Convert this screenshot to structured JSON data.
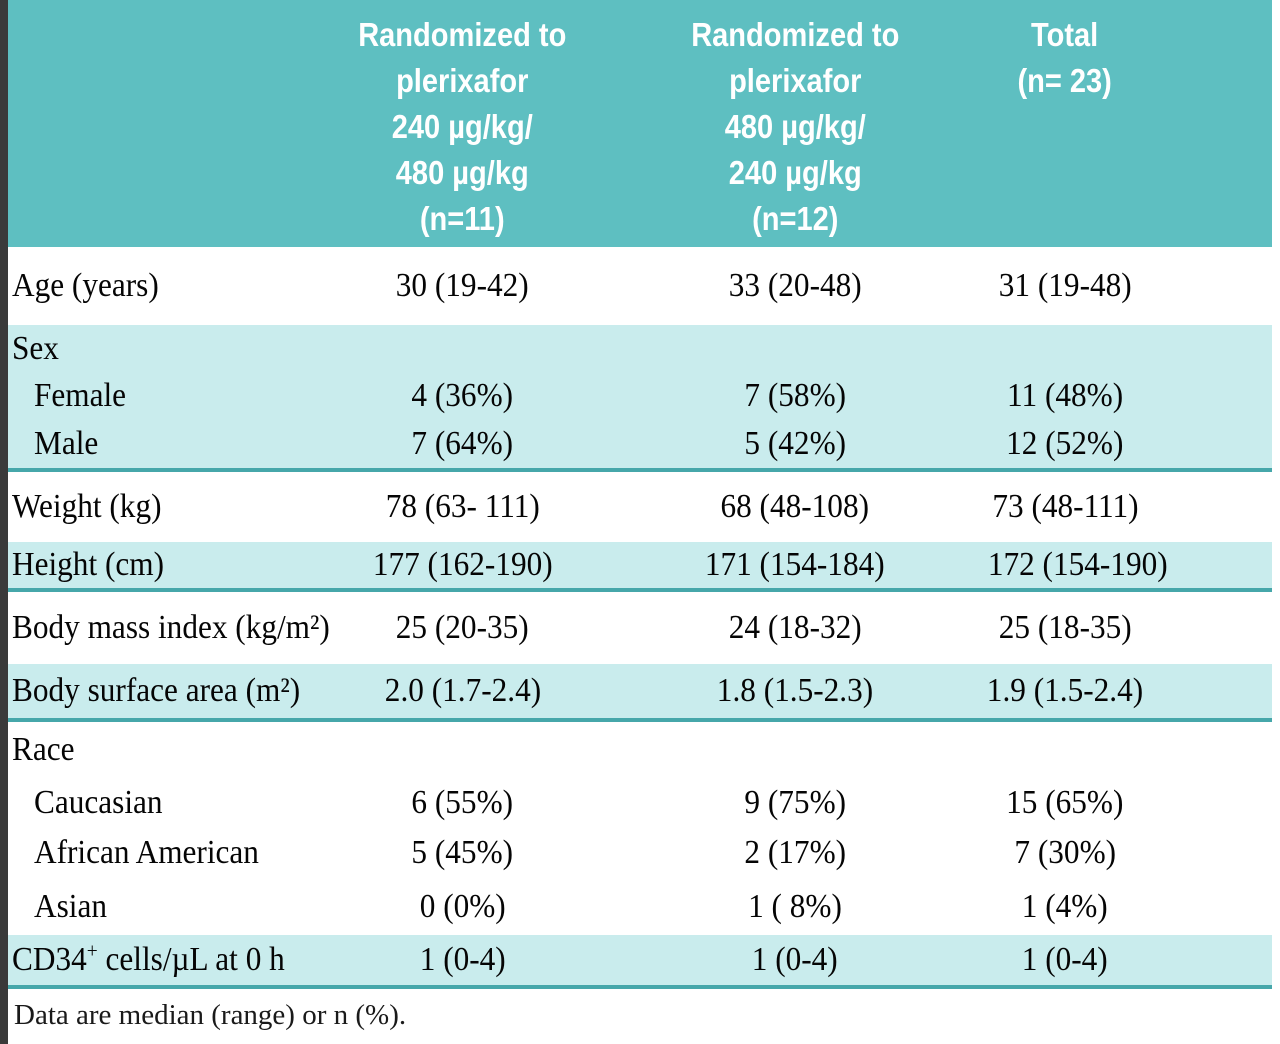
{
  "colors": {
    "header_bg": "#5ebfc1",
    "shaded_band_bg": "#c9eced",
    "band_rule": "#46a7aa",
    "left_border": "#3a3a3a",
    "header_text": "#ffffff",
    "body_text": "#050505"
  },
  "table": {
    "columns": [
      {
        "header": "Randomized to\nplerixafor\n240 µg/kg/\n480 µg/kg\n(n=11)"
      },
      {
        "header": "Randomized to\nplerixafor\n480 µg/kg/\n240 µg/kg\n(n=12)"
      },
      {
        "header": "Total\n(n= 23)"
      }
    ],
    "rows": [
      {
        "label": "Age (years)",
        "values": [
          "30 (19-42)",
          "33 (20-48)",
          "31 (19-48)"
        ]
      },
      {
        "label": "Sex",
        "values": [
          "",
          "",
          ""
        ]
      },
      {
        "label": "Female",
        "values": [
          "4 (36%)",
          "7 (58%)",
          "11 (48%)"
        ]
      },
      {
        "label": "Male",
        "values": [
          "7 (64%)",
          "5 (42%)",
          "12 (52%)"
        ]
      },
      {
        "label": "Weight (kg)",
        "values": [
          "78 (63- 111)",
          "68 (48-108)",
          "73 (48-111)"
        ]
      },
      {
        "label": "Height (cm)",
        "values": [
          "177 (162-190)",
          "171 (154-184)",
          "172 (154-190)"
        ]
      },
      {
        "label": "Body mass index (kg/m²)",
        "values": [
          "25 (20-35)",
          "24 (18-32)",
          "25 (18-35)"
        ]
      },
      {
        "label": "Body surface area (m²)",
        "values": [
          "2.0 (1.7-2.4)",
          "1.8 (1.5-2.3)",
          "1.9 (1.5-2.4)"
        ]
      },
      {
        "label": "Race",
        "values": [
          "",
          "",
          ""
        ]
      },
      {
        "label": "Caucasian",
        "values": [
          "6 (55%)",
          "9 (75%)",
          "15 (65%)"
        ]
      },
      {
        "label": "African American",
        "values": [
          "5 (45%)",
          "2 (17%)",
          "7 (30%)"
        ]
      },
      {
        "label": "Asian",
        "values": [
          "0 (0%)",
          "1 ( 8%)",
          "1 (4%)"
        ]
      },
      {
        "label_parts": {
          "base": "CD34",
          "sup": "+",
          "rest": " cells/µL at 0 h"
        },
        "values": [
          "1 (0-4)",
          "1 (0-4)",
          "1 (0-4)"
        ]
      }
    ]
  },
  "footnote": "Data are median (range) or n (%)."
}
